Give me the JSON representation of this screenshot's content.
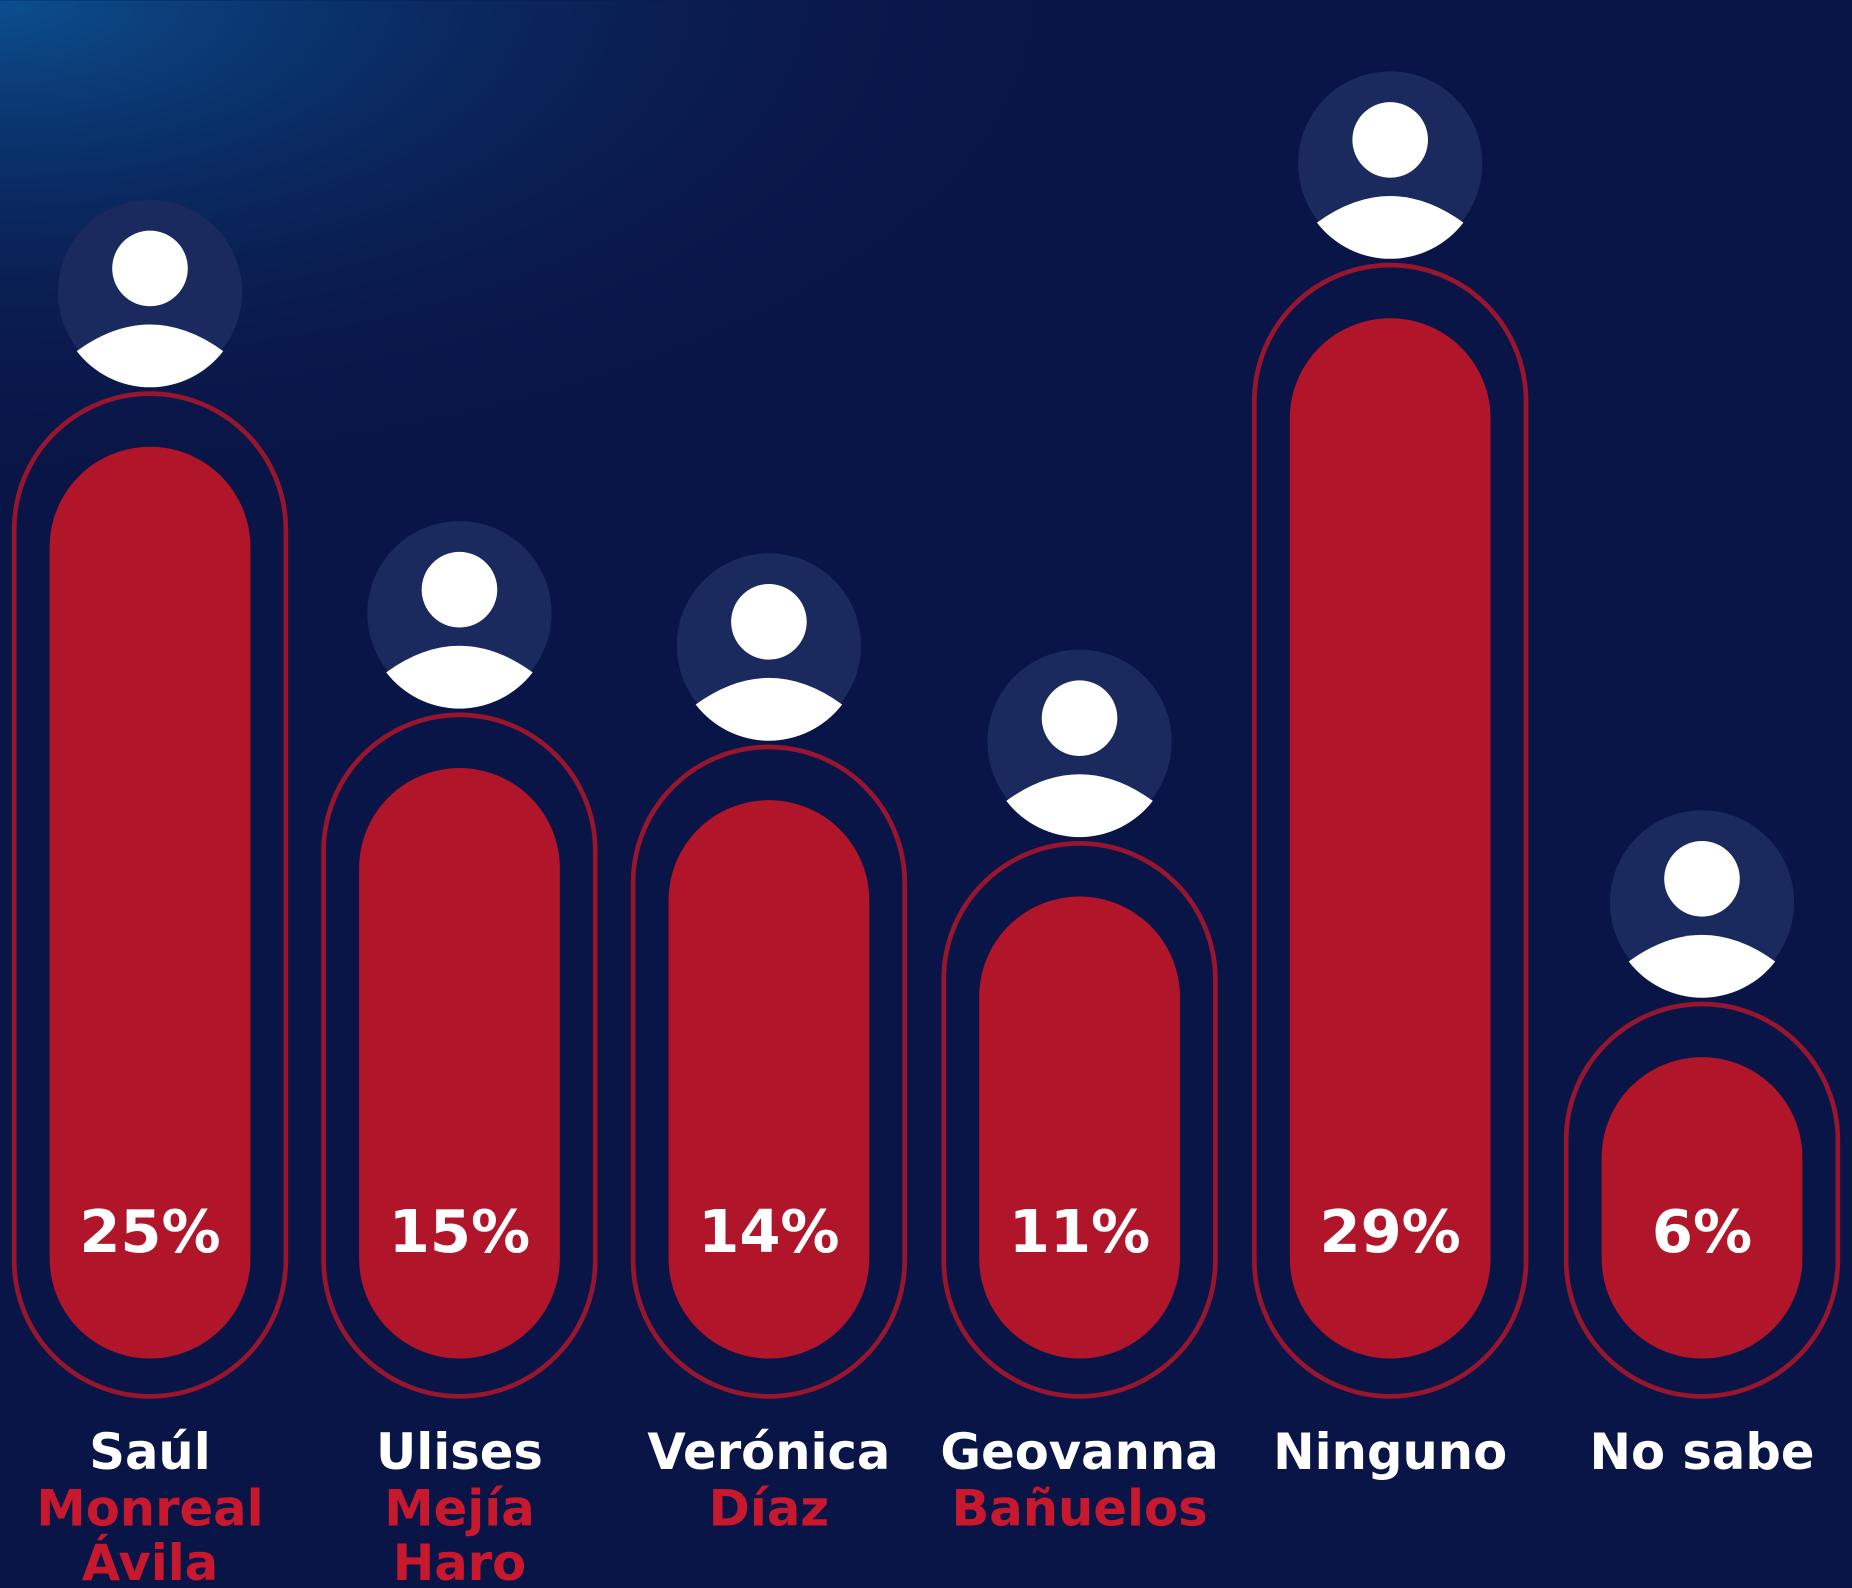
{
  "chart_data": {
    "type": "bar",
    "categories": [
      "Saúl",
      "Ulises",
      "Verónica",
      "Geovanna",
      "Ninguno",
      "No sabe"
    ],
    "category_surnames": [
      [
        "Monreal",
        "Ávila"
      ],
      [
        "Mejía",
        "Haro"
      ],
      [
        "Díaz"
      ],
      [
        "Bañuelos"
      ],
      [],
      []
    ],
    "values": [
      25,
      15,
      14,
      11,
      29,
      6
    ],
    "value_labels": [
      "25%",
      "15%",
      "14%",
      "11%",
      "29%",
      "6%"
    ],
    "color": "#b01529"
  }
}
